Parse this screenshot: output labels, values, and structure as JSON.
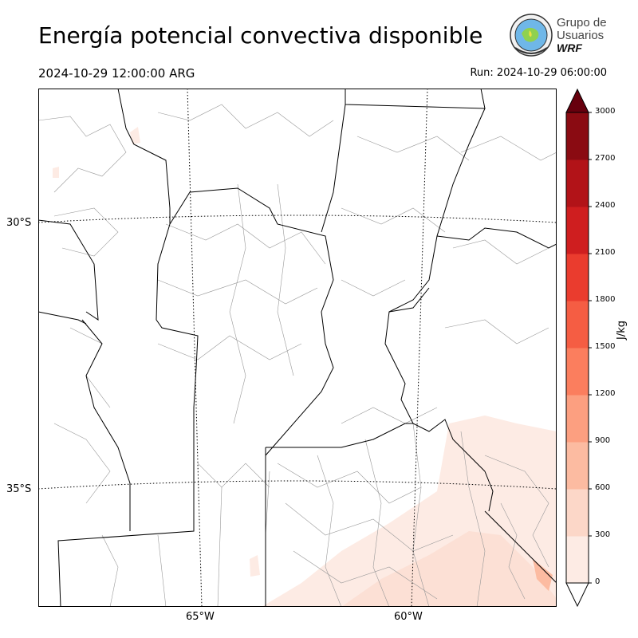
{
  "title": "Energía potencial convectiva disponible",
  "valid_time": "2024-10-29 12:00:00 ARG",
  "run_time": "Run: 2024-10-29 06:00:00",
  "logo": {
    "line1": "Grupo de",
    "line2": "Usuarios",
    "line3": "WRF"
  },
  "axes": {
    "lat_labels": [
      "30°S",
      "35°S"
    ],
    "lon_labels": [
      "65°W",
      "60°W"
    ]
  },
  "colorbar": {
    "unit": "J/kg",
    "ticks": [
      "0",
      "300",
      "600",
      "900",
      "1200",
      "1500",
      "1800",
      "2100",
      "2400",
      "2700",
      "3000"
    ],
    "colors": [
      "#fdebe4",
      "#fcd7c8",
      "#fcbba1",
      "#fc9f80",
      "#fb7e5e",
      "#f55d43",
      "#ea3c2e",
      "#cf1e1f",
      "#b21318",
      "#8a0b12"
    ],
    "extend_color": "#67000d"
  }
}
